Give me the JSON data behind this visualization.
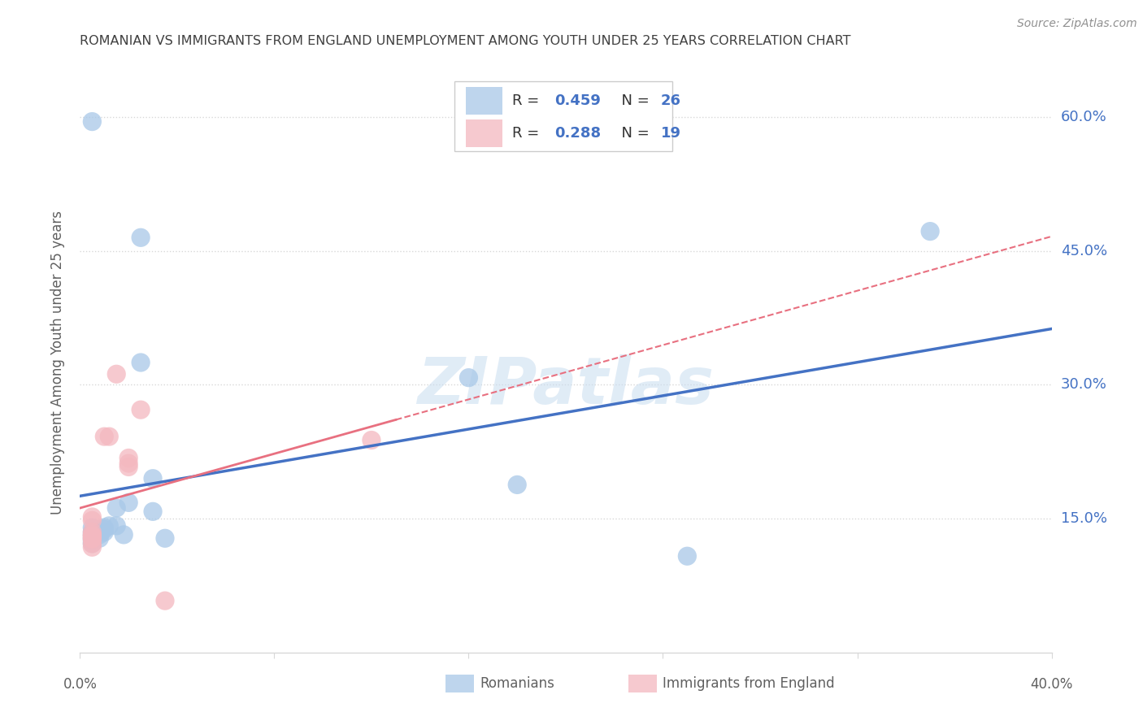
{
  "title": "ROMANIAN VS IMMIGRANTS FROM ENGLAND UNEMPLOYMENT AMONG YOUTH UNDER 25 YEARS CORRELATION CHART",
  "source": "Source: ZipAtlas.com",
  "ylabel": "Unemployment Among Youth under 25 years",
  "watermark": "ZIPatlas",
  "legend_label1": "Romanians",
  "legend_label2": "Immigrants from England",
  "R1": 0.459,
  "N1": 26,
  "R2": 0.288,
  "N2": 19,
  "xlim": [
    0.0,
    0.4
  ],
  "ylim": [
    0.0,
    0.65
  ],
  "yticks": [
    0.15,
    0.3,
    0.45,
    0.6
  ],
  "ytick_labels": [
    "15.0%",
    "30.0%",
    "45.0%",
    "60.0%"
  ],
  "blue_scatter": [
    [
      0.005,
      0.595
    ],
    [
      0.025,
      0.465
    ],
    [
      0.005,
      0.14
    ],
    [
      0.005,
      0.135
    ],
    [
      0.005,
      0.132
    ],
    [
      0.005,
      0.128
    ],
    [
      0.005,
      0.125
    ],
    [
      0.005,
      0.122
    ],
    [
      0.008,
      0.128
    ],
    [
      0.008,
      0.132
    ],
    [
      0.01,
      0.135
    ],
    [
      0.01,
      0.14
    ],
    [
      0.01,
      0.138
    ],
    [
      0.012,
      0.142
    ],
    [
      0.015,
      0.142
    ],
    [
      0.015,
      0.162
    ],
    [
      0.018,
      0.132
    ],
    [
      0.02,
      0.168
    ],
    [
      0.025,
      0.325
    ],
    [
      0.03,
      0.158
    ],
    [
      0.03,
      0.195
    ],
    [
      0.035,
      0.128
    ],
    [
      0.16,
      0.308
    ],
    [
      0.18,
      0.188
    ],
    [
      0.25,
      0.108
    ],
    [
      0.35,
      0.472
    ]
  ],
  "pink_scatter": [
    [
      0.005,
      0.148
    ],
    [
      0.005,
      0.152
    ],
    [
      0.005,
      0.135
    ],
    [
      0.005,
      0.13
    ],
    [
      0.005,
      0.128
    ],
    [
      0.005,
      0.122
    ],
    [
      0.005,
      0.132
    ],
    [
      0.01,
      0.242
    ],
    [
      0.012,
      0.242
    ],
    [
      0.015,
      0.312
    ],
    [
      0.02,
      0.212
    ],
    [
      0.02,
      0.208
    ],
    [
      0.02,
      0.218
    ],
    [
      0.025,
      0.272
    ],
    [
      0.035,
      0.058
    ],
    [
      0.12,
      0.238
    ],
    [
      0.005,
      0.127
    ],
    [
      0.005,
      0.131
    ],
    [
      0.005,
      0.118
    ]
  ],
  "blue_line_color": "#4472c4",
  "pink_line_color": "#e87080",
  "blue_scatter_color": "#a8c8e8",
  "pink_scatter_color": "#f4b8c0",
  "right_label_color": "#4472c4",
  "bg_color": "#ffffff",
  "grid_color": "#d8d8d8",
  "title_color": "#404040",
  "label_color": "#606060",
  "source_color": "#909090"
}
